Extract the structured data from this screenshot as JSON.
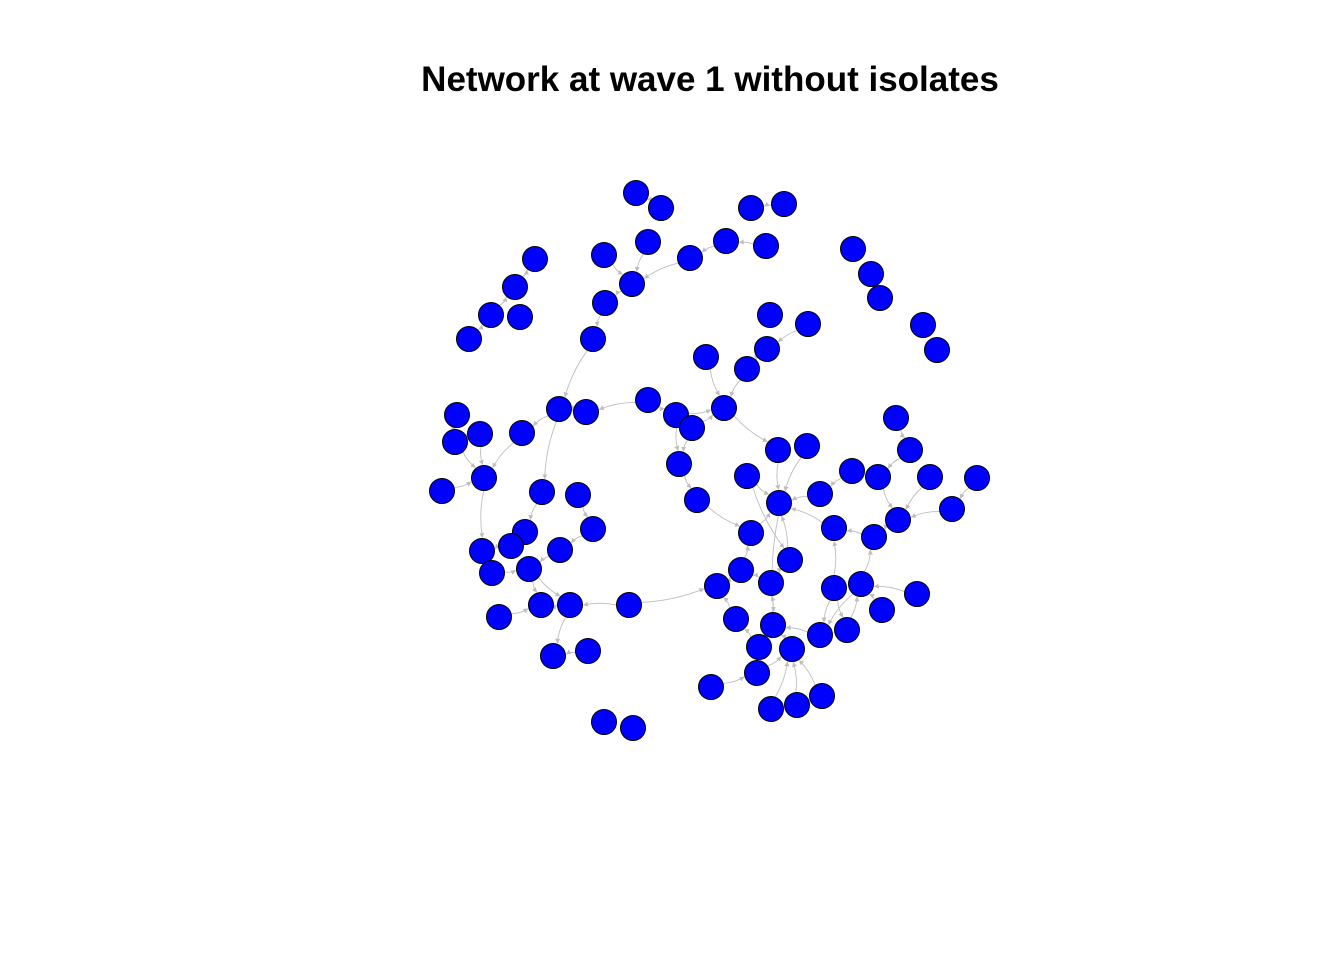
{
  "title": "Network at wave 1 without isolates",
  "colors": {
    "node_fill": "#0000ff",
    "node_stroke": "#000000",
    "edge": "#bebebe"
  },
  "chart_data": {
    "type": "network",
    "directed": true,
    "title": "Network at wave 1 without isolates"
  }
}
